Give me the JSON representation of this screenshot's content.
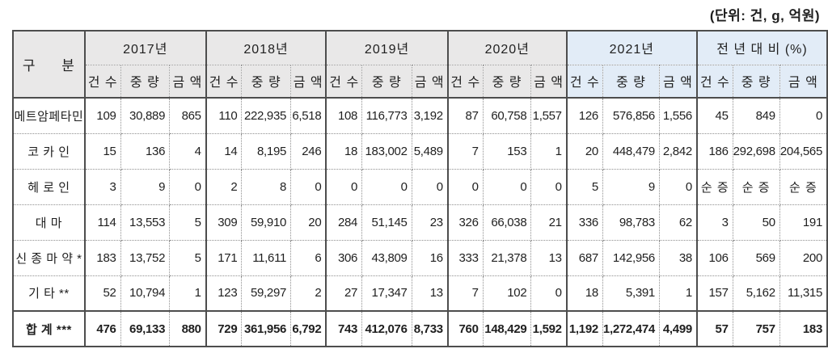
{
  "unit_label": "(단위: 건, g, 억원)",
  "table": {
    "corner_header": "구 분",
    "col_groups": [
      {
        "label": "2017년",
        "highlight": false
      },
      {
        "label": "2018년",
        "highlight": false
      },
      {
        "label": "2019년",
        "highlight": false
      },
      {
        "label": "2020년",
        "highlight": false
      },
      {
        "label": "2021년",
        "highlight": true
      },
      {
        "label": "전 년 대 비 (%)",
        "highlight": true
      }
    ],
    "sub_headers": [
      "건 수",
      "중 량",
      "금 액"
    ],
    "rows": [
      {
        "label": "메트암페타민",
        "values": [
          "109",
          "30,889",
          "865",
          "110",
          "222,935",
          "6,518",
          "108",
          "116,773",
          "3,192",
          "87",
          "60,758",
          "1,557",
          "126",
          "576,856",
          "1,556",
          "45",
          "849",
          "0"
        ]
      },
      {
        "label": "코 카 인",
        "values": [
          "15",
          "136",
          "4",
          "14",
          "8,195",
          "246",
          "18",
          "183,002",
          "5,489",
          "7",
          "153",
          "1",
          "20",
          "448,479",
          "2,842",
          "186",
          "292,698",
          "204,565"
        ]
      },
      {
        "label": "헤 로 인",
        "values": [
          "3",
          "9",
          "0",
          "2",
          "8",
          "0",
          "0",
          "0",
          "0",
          "0",
          "0",
          "0",
          "5",
          "9",
          "0",
          "순 증",
          "순 증",
          "순 증"
        ]
      },
      {
        "label": "대 마",
        "values": [
          "114",
          "13,553",
          "5",
          "309",
          "59,910",
          "20",
          "284",
          "51,145",
          "23",
          "326",
          "66,038",
          "21",
          "336",
          "98,783",
          "62",
          "3",
          "50",
          "191"
        ]
      },
      {
        "label": "신 종 마 약 *",
        "values": [
          "183",
          "13,752",
          "5",
          "171",
          "11,611",
          "6",
          "306",
          "43,809",
          "16",
          "333",
          "21,378",
          "13",
          "687",
          "142,956",
          "38",
          "106",
          "569",
          "200"
        ]
      },
      {
        "label": "기 타 **",
        "values": [
          "52",
          "10,794",
          "1",
          "123",
          "59,297",
          "2",
          "27",
          "17,347",
          "13",
          "7",
          "102",
          "0",
          "18",
          "5,391",
          "1",
          "157",
          "5,162",
          "11,315"
        ]
      }
    ],
    "total_row": {
      "label": "합 계 ***",
      "values": [
        "476",
        "69,133",
        "880",
        "729",
        "361,956",
        "6,792",
        "743",
        "412,076",
        "8,733",
        "760",
        "148,429",
        "1,592",
        "1,192",
        "1,272,474",
        "4,499",
        "57",
        "757",
        "183"
      ]
    },
    "colors": {
      "header_gray": "#e9e8e8",
      "header_blue": "#e2ecf7",
      "border_dark": "#4d4d4d"
    }
  }
}
